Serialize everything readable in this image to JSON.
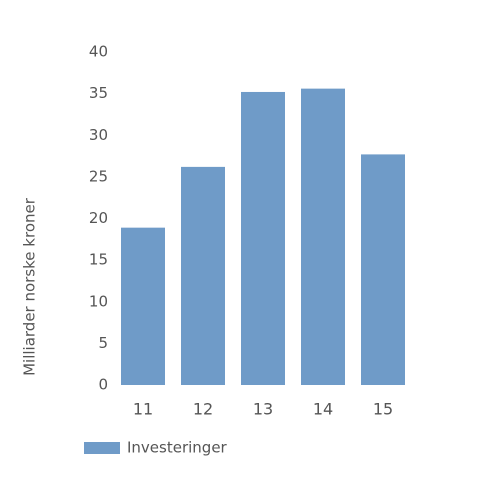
{
  "chart_data": {
    "type": "bar",
    "ylabel": "Milliarder norske kroner",
    "categories": [
      "11",
      "12",
      "13",
      "14",
      "15"
    ],
    "series": [
      {
        "name": "Investeringer",
        "color": "#6f9bc8",
        "values": [
          18.9,
          26.2,
          35.2,
          35.6,
          27.7
        ]
      }
    ],
    "ylim": [
      0,
      40
    ],
    "yticks": [
      0,
      5,
      10,
      15,
      20,
      25,
      30,
      35,
      40
    ],
    "grid": false,
    "legend": "bottom-left"
  }
}
